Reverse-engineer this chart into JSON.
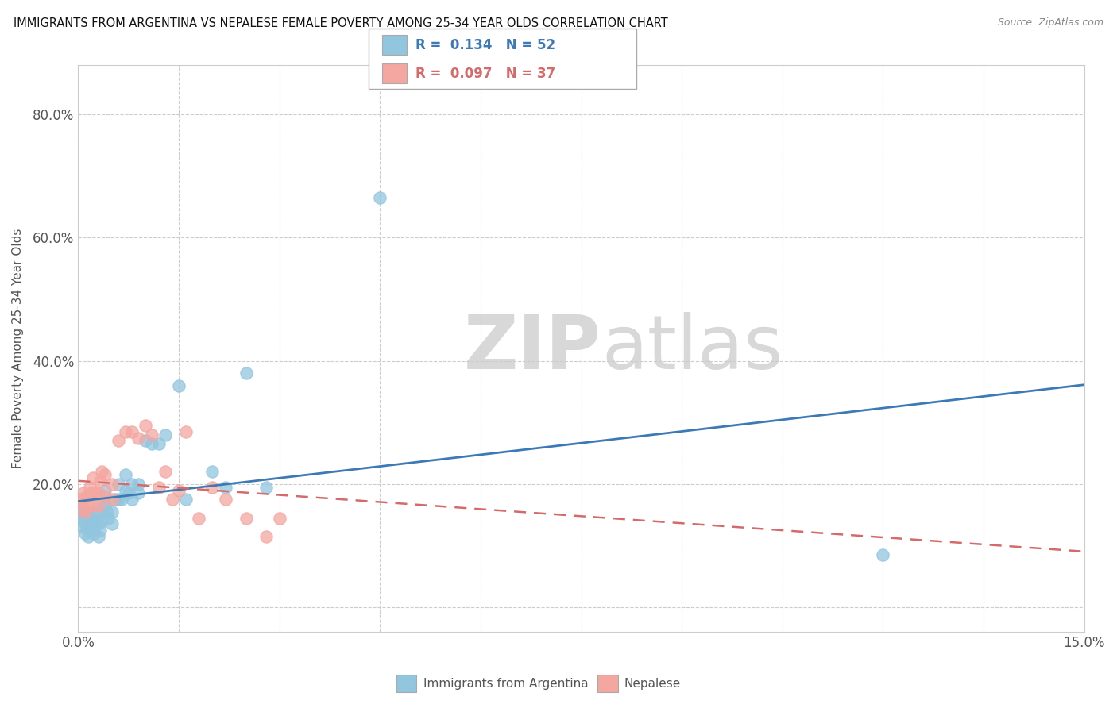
{
  "title": "IMMIGRANTS FROM ARGENTINA VS NEPALESE FEMALE POVERTY AMONG 25-34 YEAR OLDS CORRELATION CHART",
  "source": "Source: ZipAtlas.com",
  "ylabel": "Female Poverty Among 25-34 Year Olds",
  "xlim": [
    0.0,
    0.15
  ],
  "ylim": [
    -0.04,
    0.88
  ],
  "xtick_labels": [
    "0.0%",
    "15.0%"
  ],
  "xtick_vals": [
    0.0,
    0.15
  ],
  "ytick_vals": [
    0.0,
    0.2,
    0.4,
    0.6,
    0.8
  ],
  "ytick_labels": [
    "",
    "20.0%",
    "40.0%",
    "60.0%",
    "80.0%"
  ],
  "blue_color": "#92c5de",
  "pink_color": "#f4a6a0",
  "trend_blue": "#3d7ab5",
  "trend_pink": "#d46a6a",
  "watermark_zip": "ZIP",
  "watermark_atlas": "atlas",
  "blue_x": [
    0.0003,
    0.0005,
    0.0007,
    0.0008,
    0.001,
    0.001,
    0.0012,
    0.0013,
    0.0015,
    0.0015,
    0.0018,
    0.002,
    0.002,
    0.0022,
    0.0023,
    0.0025,
    0.0027,
    0.003,
    0.003,
    0.003,
    0.0033,
    0.0035,
    0.0037,
    0.004,
    0.004,
    0.0043,
    0.0045,
    0.005,
    0.005,
    0.0055,
    0.006,
    0.006,
    0.0065,
    0.007,
    0.007,
    0.0075,
    0.008,
    0.008,
    0.009,
    0.009,
    0.01,
    0.011,
    0.012,
    0.013,
    0.015,
    0.016,
    0.02,
    0.022,
    0.025,
    0.028,
    0.045,
    0.12
  ],
  "blue_y": [
    0.155,
    0.14,
    0.13,
    0.16,
    0.12,
    0.145,
    0.13,
    0.155,
    0.115,
    0.14,
    0.13,
    0.125,
    0.145,
    0.14,
    0.12,
    0.135,
    0.155,
    0.115,
    0.135,
    0.155,
    0.125,
    0.14,
    0.17,
    0.165,
    0.19,
    0.155,
    0.145,
    0.155,
    0.135,
    0.175,
    0.175,
    0.2,
    0.175,
    0.19,
    0.215,
    0.185,
    0.2,
    0.175,
    0.185,
    0.2,
    0.27,
    0.265,
    0.265,
    0.28,
    0.36,
    0.175,
    0.22,
    0.195,
    0.38,
    0.195,
    0.665,
    0.085
  ],
  "pink_x": [
    0.0002,
    0.0004,
    0.0006,
    0.0008,
    0.001,
    0.0012,
    0.0015,
    0.0017,
    0.002,
    0.002,
    0.0022,
    0.0025,
    0.003,
    0.003,
    0.0033,
    0.0035,
    0.004,
    0.004,
    0.005,
    0.005,
    0.006,
    0.007,
    0.008,
    0.009,
    0.01,
    0.011,
    0.012,
    0.013,
    0.014,
    0.015,
    0.016,
    0.018,
    0.02,
    0.022,
    0.025,
    0.028,
    0.03
  ],
  "pink_y": [
    0.175,
    0.16,
    0.175,
    0.185,
    0.155,
    0.18,
    0.165,
    0.195,
    0.165,
    0.185,
    0.21,
    0.185,
    0.165,
    0.185,
    0.205,
    0.22,
    0.18,
    0.215,
    0.175,
    0.2,
    0.27,
    0.285,
    0.285,
    0.275,
    0.295,
    0.28,
    0.195,
    0.22,
    0.175,
    0.19,
    0.285,
    0.145,
    0.195,
    0.175,
    0.145,
    0.115,
    0.145
  ]
}
